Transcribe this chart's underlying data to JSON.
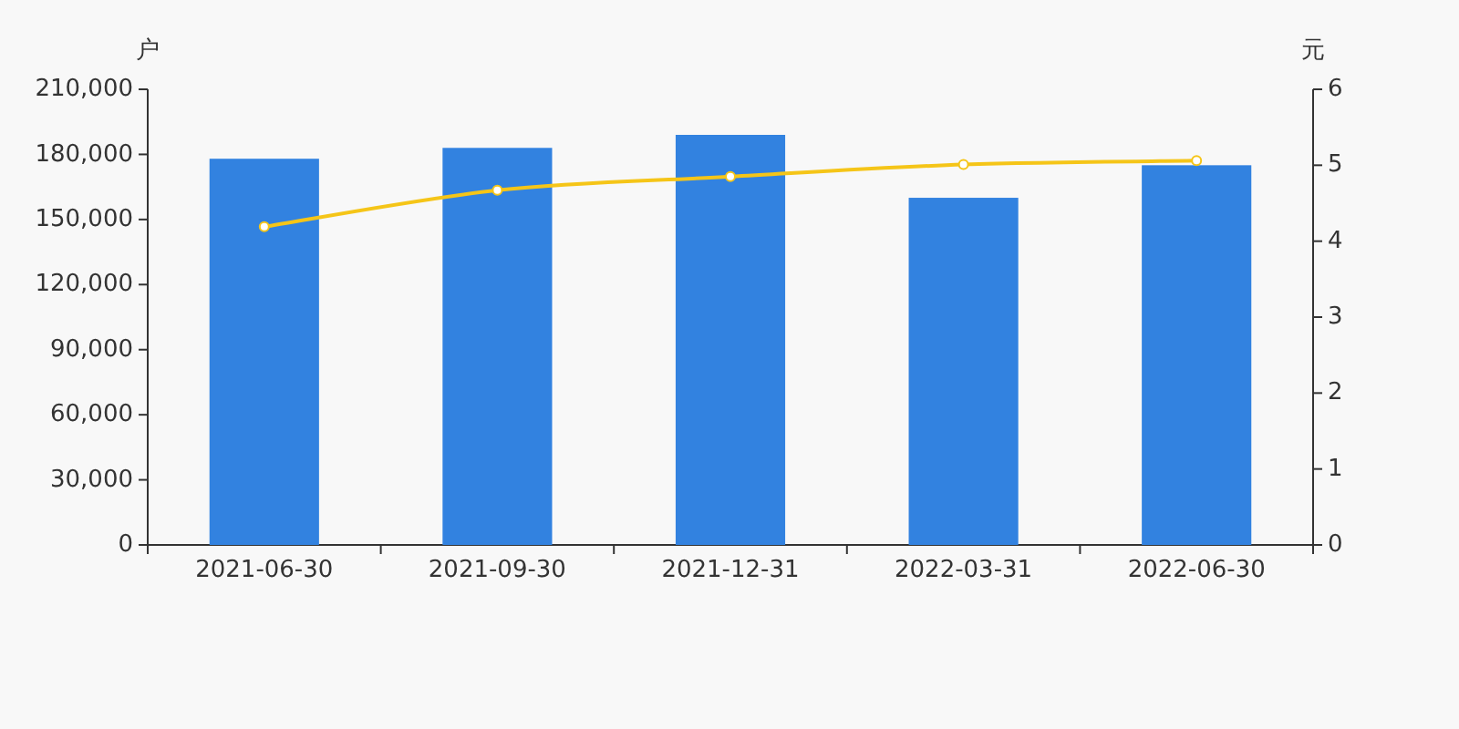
{
  "chart_data": {
    "type": "bar",
    "categories": [
      "2021-06-30",
      "2021-09-30",
      "2021-12-31",
      "2022-03-31",
      "2022-06-30"
    ],
    "series": [
      {
        "color": "#3282e0",
        "values": [
          178000,
          183000,
          189000,
          160000,
          175000
        ]
      },
      {
        "type": "line",
        "axis": "y2",
        "color": "#f5c518",
        "marker": "circle",
        "values": [
          4.19,
          4.67,
          4.85,
          5.01,
          5.06
        ]
      }
    ],
    "ylabel": "户",
    "y2label": "元",
    "ylim": [
      0,
      210000
    ],
    "yticks": [
      0,
      {
        "value": 30000,
        "label": "30,000"
      },
      {
        "value": 60000,
        "label": "60,000"
      },
      {
        "value": 90000,
        "label": "90,000"
      },
      {
        "value": 120000,
        "label": "120,000"
      },
      {
        "value": 150000,
        "label": "150,000"
      },
      {
        "value": 180000,
        "label": "180,000"
      },
      {
        "value": 210000,
        "label": "210,000"
      }
    ],
    "y2lim": [
      0,
      6
    ],
    "y2ticks": [
      0,
      1,
      2,
      3,
      4,
      5,
      6
    ],
    "grid": false
  }
}
